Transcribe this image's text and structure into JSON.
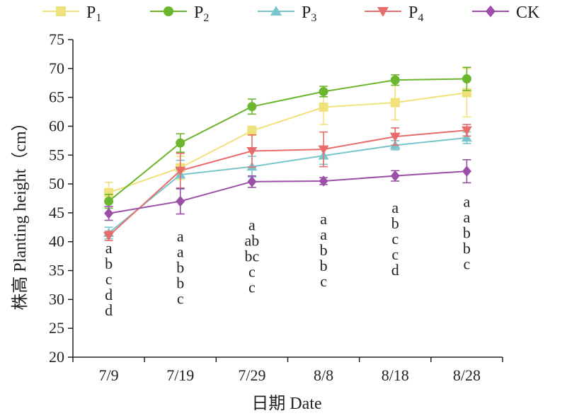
{
  "chart_data": {
    "type": "line",
    "xlabel": "日期 Date",
    "ylabel": "株高 Planting height（cm）",
    "categories": [
      "7/9",
      "7/19",
      "7/29",
      "8/8",
      "8/18",
      "8/28"
    ],
    "ylim": [
      20,
      75
    ],
    "yticks": [
      20,
      25,
      30,
      35,
      40,
      45,
      50,
      55,
      60,
      65,
      70,
      75
    ],
    "grid": false,
    "legend_position": "top",
    "series": [
      {
        "name": "P",
        "sub": "1",
        "color": "#f0e27a",
        "marker": "square",
        "values": [
          48.5,
          52.8,
          59.2,
          63.3,
          64.1,
          65.8
        ],
        "errors": [
          1.8,
          2.0,
          0.8,
          3.0,
          3.0,
          4.2
        ]
      },
      {
        "name": "P",
        "sub": "2",
        "color": "#6cb52e",
        "marker": "circle",
        "values": [
          47.0,
          57.1,
          63.4,
          66.0,
          68.0,
          68.2
        ],
        "errors": [
          1.2,
          1.6,
          1.3,
          0.9,
          0.9,
          2.0
        ]
      },
      {
        "name": "P",
        "sub": "3",
        "color": "#78c5cc",
        "marker": "triangle-up",
        "values": [
          41.5,
          51.6,
          53.0,
          54.9,
          56.7,
          58.0
        ],
        "errors": [
          1.0,
          2.5,
          1.8,
          1.5,
          0.8,
          1.0
        ]
      },
      {
        "name": "P",
        "sub": "4",
        "color": "#e86c6c",
        "marker": "triangle-down",
        "values": [
          41.0,
          52.3,
          55.7,
          56.0,
          58.2,
          59.3
        ],
        "errors": [
          0.8,
          3.0,
          2.8,
          3.0,
          1.5,
          1.0
        ]
      },
      {
        "name": "CK",
        "sub": "",
        "color": "#9b4fa6",
        "marker": "diamond",
        "values": [
          44.9,
          47.0,
          50.4,
          50.5,
          51.4,
          52.2
        ],
        "errors": [
          1.2,
          2.2,
          1.0,
          0.6,
          0.9,
          2.0
        ]
      }
    ],
    "significance_letters": [
      [
        "a",
        "b",
        "c",
        "d",
        "d"
      ],
      [
        "a",
        "a",
        "b",
        "b",
        "c"
      ],
      [
        "a",
        "ab",
        "bc",
        "c",
        "c"
      ],
      [
        "a",
        "a",
        "b",
        "b",
        "c"
      ],
      [
        "a",
        "b",
        "c",
        "c",
        "d"
      ],
      [
        "a",
        "a",
        "b",
        "b",
        "c"
      ]
    ],
    "significance_top_y": [
      38.0,
      40.0,
      42.0,
      43.0,
      45.0,
      46.0
    ]
  }
}
